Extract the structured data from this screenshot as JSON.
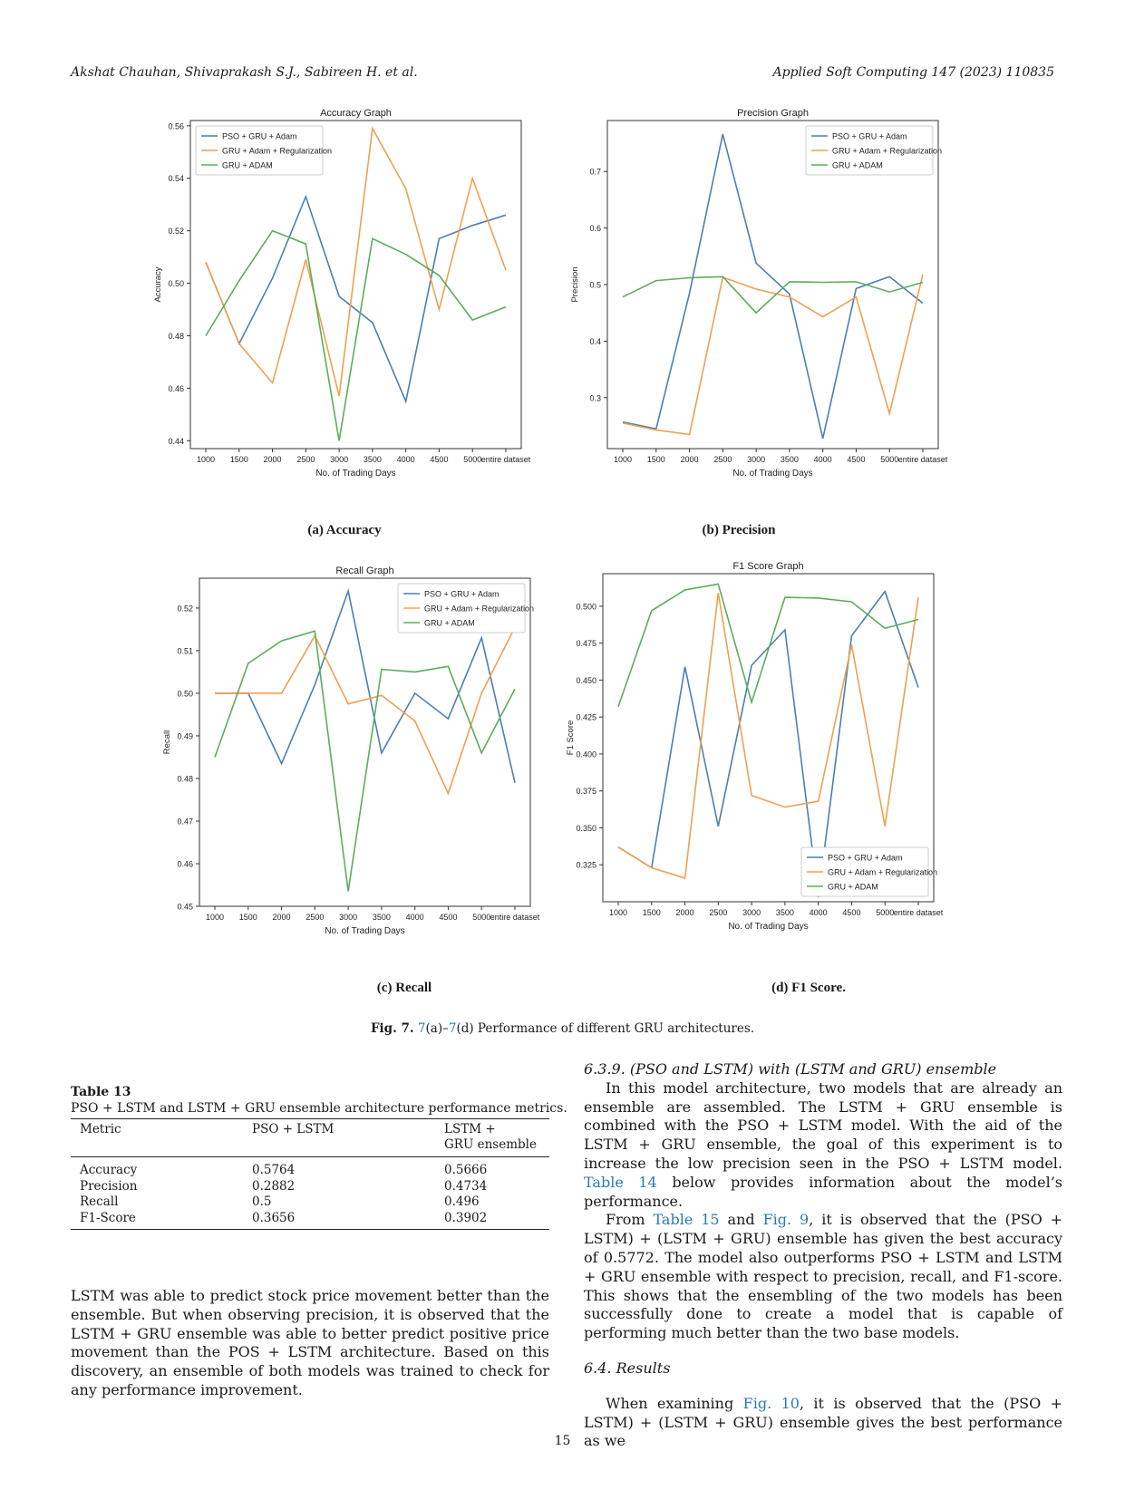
{
  "header": {
    "left": "Akshat Chauhan, Shivaprakash S.J., Sabireen H. et al.",
    "right": "Applied Soft Computing 147 (2023) 110835"
  },
  "figure": {
    "label": "Fig. 7.",
    "caption_ref_a": "7",
    "caption_ref_a_suffix": "(a)–",
    "caption_ref_d": "7",
    "caption_rest": "(d) Performance of different GRU architectures.",
    "subcaptions": [
      "(a) Accuracy",
      "(b) Precision",
      "(c) Recall",
      "(d) F1 Score."
    ]
  },
  "chart_data": [
    {
      "type": "line",
      "title": "Accuracy Graph",
      "xlabel": "No. of Trading Days",
      "ylabel": "Accuracy",
      "categories": [
        "1000",
        "1500",
        "2000",
        "2500",
        "3000",
        "3500",
        "4000",
        "4500",
        "5000",
        "entire dataset"
      ],
      "ylim": [
        0.437,
        0.562
      ],
      "yticks": [
        "0.44",
        "0.46",
        "0.48",
        "0.50",
        "0.52",
        "0.54",
        "0.56"
      ],
      "legend": "top-left",
      "series": [
        {
          "name": "PSO + GRU + Adam",
          "color": "#4c7fb3",
          "values": [
            0.508,
            0.477,
            0.502,
            0.533,
            0.495,
            0.485,
            0.455,
            0.517,
            0.522,
            0.526
          ]
        },
        {
          "name": "GRU + Adam + Regularization",
          "color": "#f0a050",
          "values": [
            0.508,
            0.477,
            0.462,
            0.509,
            0.457,
            0.559,
            0.536,
            0.49,
            0.54,
            0.505
          ]
        },
        {
          "name": "GRU + ADAM",
          "color": "#5cad5c",
          "values": [
            0.48,
            0.501,
            0.52,
            0.515,
            0.44,
            0.517,
            0.511,
            0.503,
            0.486,
            0.491
          ]
        }
      ]
    },
    {
      "type": "line",
      "title": "Precision Graph",
      "xlabel": "No. of Trading Days",
      "ylabel": "Precision",
      "categories": [
        "1000",
        "1500",
        "2000",
        "2500",
        "3000",
        "3500",
        "4000",
        "4500",
        "5000",
        "entire dataset"
      ],
      "ylim": [
        0.21,
        0.79
      ],
      "yticks": [
        "0.3",
        "0.4",
        "0.5",
        "0.6",
        "0.7"
      ],
      "legend": "top-right",
      "series": [
        {
          "name": "PSO + GRU + Adam",
          "color": "#4c7fb3",
          "values": [
            0.257,
            0.245,
            0.485,
            0.766,
            0.538,
            0.483,
            0.228,
            0.493,
            0.514,
            0.467
          ]
        },
        {
          "name": "GRU + Adam + Regularization",
          "color": "#f0a050",
          "values": [
            0.255,
            0.243,
            0.235,
            0.513,
            0.492,
            0.478,
            0.443,
            0.478,
            0.272,
            0.518
          ]
        },
        {
          "name": "GRU + ADAM",
          "color": "#5cad5c",
          "values": [
            0.478,
            0.507,
            0.512,
            0.514,
            0.45,
            0.505,
            0.504,
            0.505,
            0.487,
            0.504
          ]
        }
      ]
    },
    {
      "type": "line",
      "title": "Recall Graph",
      "xlabel": "No. of Trading Days",
      "ylabel": "Recall",
      "categories": [
        "1000",
        "1500",
        "2000",
        "2500",
        "3000",
        "3500",
        "4000",
        "4500",
        "5000",
        "entire dataset"
      ],
      "ylim": [
        0.45,
        0.527
      ],
      "yticks": [
        "0.45",
        "0.46",
        "0.47",
        "0.48",
        "0.49",
        "0.50",
        "0.51",
        "0.52"
      ],
      "legend": "top-right",
      "series": [
        {
          "name": "PSO + GRU + Adam",
          "color": "#4c7fb3",
          "values": [
            0.5,
            0.5,
            0.4835,
            0.502,
            0.524,
            0.486,
            0.5,
            0.494,
            0.513,
            0.479
          ]
        },
        {
          "name": "GRU + Adam + Regularization",
          "color": "#f0a050",
          "values": [
            0.5,
            0.5,
            0.5,
            0.5135,
            0.4975,
            0.4995,
            0.4935,
            0.4765,
            0.5,
            0.5155
          ]
        },
        {
          "name": "GRU + ADAM",
          "color": "#5cad5c",
          "values": [
            0.485,
            0.507,
            0.5123,
            0.5146,
            0.4535,
            0.5056,
            0.505,
            0.5063,
            0.486,
            0.501
          ]
        }
      ]
    },
    {
      "type": "line",
      "title": "F1 Score Graph",
      "xlabel": "No. of Trading Days",
      "ylabel": "F1 Score",
      "categories": [
        "1000",
        "1500",
        "2000",
        "2500",
        "3000",
        "3500",
        "4000",
        "4500",
        "5000",
        "entire dataset"
      ],
      "ylim": [
        0.3,
        0.522
      ],
      "yticks": [
        "0.325",
        "0.350",
        "0.375",
        "0.400",
        "0.425",
        "0.450",
        "0.475",
        "0.500"
      ],
      "legend": "bottom-right",
      "series": [
        {
          "name": "PSO + GRU + Adam",
          "color": "#4c7fb3",
          "values": [
            0.337,
            0.323,
            0.459,
            0.351,
            0.46,
            0.484,
            0.303,
            0.48,
            0.51,
            0.445
          ]
        },
        {
          "name": "GRU + Adam + Regularization",
          "color": "#f0a050",
          "values": [
            0.337,
            0.323,
            0.316,
            0.509,
            0.372,
            0.364,
            0.368,
            0.474,
            0.351,
            0.506
          ]
        },
        {
          "name": "GRU + ADAM",
          "color": "#5cad5c",
          "values": [
            0.432,
            0.497,
            0.511,
            0.515,
            0.435,
            0.506,
            0.5055,
            0.503,
            0.485,
            0.491
          ]
        }
      ]
    }
  ],
  "table": {
    "label": "Table 13",
    "title": "PSO + LSTM and LSTM + GRU ensemble architecture performance metrics.",
    "headers": [
      "Metric",
      "PSO + LSTM",
      "LSTM +",
      "GRU ensemble"
    ],
    "rows": [
      [
        "Accuracy",
        "0.5764",
        "0.5666"
      ],
      [
        "Precision",
        "0.2882",
        "0.4734"
      ],
      [
        "Recall",
        "0.5",
        "0.496"
      ],
      [
        "F1-Score",
        "0.3656",
        "0.3902"
      ]
    ]
  },
  "left_column": {
    "paragraph": "LSTM was able to predict stock price movement better than the ensemble. But when observing precision, it is observed that the LSTM + GRU ensemble was able to better predict positive price movement than the POS + LSTM architecture. Based on this discovery, an ensemble of both models was trained to check for any performance improvement."
  },
  "right_column": {
    "section_title": "6.3.9. (PSO and LSTM) with (LSTM and GRU) ensemble",
    "p1_a": "In this model architecture, two models that are already an ensemble are assembled. The LSTM + GRU ensemble is combined with the PSO + LSTM model. With the aid of the LSTM + GRU ensemble, the goal of this experiment is to increase the low precision seen in the PSO + LSTM model.",
    "p1_link": "Table 14",
    "p1_b": "below provides information about the model’s performance.",
    "p2_a": "From",
    "p2_link1": "Table 15",
    "p2_b": "and",
    "p2_link2": "Fig. 9",
    "p2_c": ", it is observed that the (PSO + LSTM) + (LSTM + GRU) ensemble has given the best accuracy of 0.5772. The model also outperforms PSO + LSTM and LSTM + GRU ensem­ble with respect to precision, recall, and F1-score. This shows that the ensembling of the two models has been successfully done to create a model that is capable of performing much better than the two base models.",
    "results_title": "6.4. Results",
    "p3_a": "When examining",
    "p3_link": "Fig. 10",
    "p3_b": ", it is observed that the (PSO + LSTM) + (LSTM + GRU) ensemble gives the best performance as we"
  },
  "page_number": "15"
}
